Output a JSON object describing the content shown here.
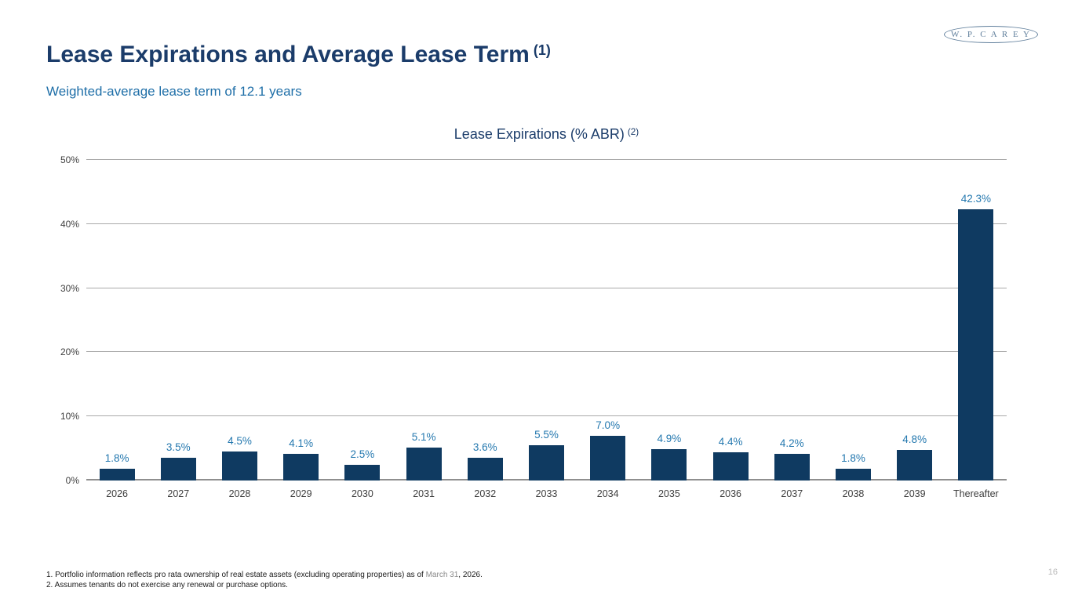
{
  "slide": {
    "title": "Lease Expirations and Average Lease Term",
    "title_superscript": "(1)",
    "subtitle": "Weighted-average lease term of 12.1 years",
    "logo_text": "W. P. C A R E Y",
    "page_number": "16"
  },
  "footnotes": [
    {
      "prefix": "1. Portfolio information reflects pro rata ownership of real estate assets (excluding operating properties) as of ",
      "date": "March 31",
      "suffix": ", 2026."
    },
    {
      "text": "2. Assumes tenants do not exercise any renewal or purchase options."
    }
  ],
  "colors": {
    "title_navy": "#1b3c6a",
    "subtitle_blue": "#1f6fa8",
    "bar_navy": "#0f3a61",
    "value_label_blue": "#2478af",
    "gridline_gray": "#a9a9a9",
    "axis_gray": "#8f8f8f",
    "tick_text": "#404040",
    "logo_slate": "#5f7e9b",
    "page_number_gray": "#b9b9b9"
  },
  "chart_data": {
    "type": "bar",
    "title": "Lease Expirations (% ABR)",
    "title_superscript": "(2)",
    "categories": [
      "2026",
      "2027",
      "2028",
      "2029",
      "2030",
      "2031",
      "2032",
      "2033",
      "2034",
      "2035",
      "2036",
      "2037",
      "2038",
      "2039",
      "Thereafter"
    ],
    "values": [
      1.8,
      3.5,
      4.5,
      4.1,
      2.5,
      5.1,
      3.6,
      5.5,
      7.0,
      4.9,
      4.4,
      4.2,
      1.8,
      4.8,
      42.3
    ],
    "labels": [
      "1.8%",
      "3.5%",
      "4.5%",
      "4.1%",
      "2.5%",
      "5.1%",
      "3.6%",
      "5.5%",
      "7.0%",
      "4.9%",
      "4.4%",
      "4.2%",
      "1.8%",
      "4.8%",
      "42.3%"
    ],
    "xlabel": "",
    "ylabel": "",
    "ylim": [
      0,
      50
    ],
    "yticks": [
      {
        "value": 0,
        "label": "0%"
      },
      {
        "value": 10,
        "label": "10%"
      },
      {
        "value": 20,
        "label": "20%"
      },
      {
        "value": 30,
        "label": "30%"
      },
      {
        "value": 40,
        "label": "40%"
      },
      {
        "value": 50,
        "label": "50%"
      }
    ],
    "grid": true,
    "legend": false
  }
}
